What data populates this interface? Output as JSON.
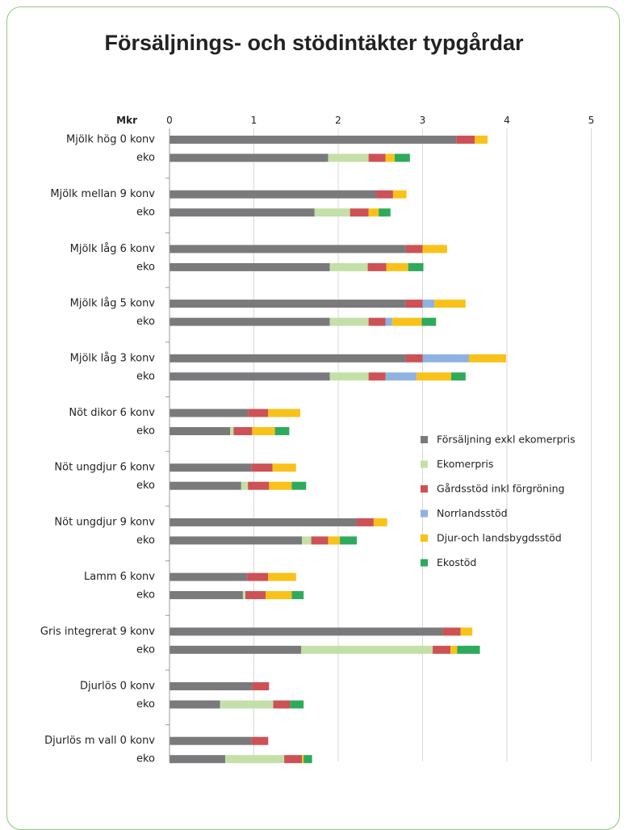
{
  "chart_data": {
    "type": "bar",
    "orientation": "horizontal",
    "stacked": true,
    "title": "Försäljnings- och stödintäkter typgårdar",
    "axis_unit": "Mkr",
    "xlim": [
      0,
      5
    ],
    "xticks": [
      "0",
      "1",
      "2",
      "3",
      "4",
      "5"
    ],
    "grid": true,
    "legend_position": "right",
    "categories": [
      "Mjölk hög 0 konv",
      "eko",
      "Mjölk mellan 9 konv",
      "eko",
      "Mjölk låg 6 konv",
      "eko",
      "Mjölk låg 5 konv",
      "eko",
      "Mjölk låg 3 konv",
      "eko",
      "Nöt dikor 6 konv",
      "eko",
      "Nöt ungdjur 6 konv",
      "eko",
      "Nöt ungdjur 9 konv",
      "eko",
      "Lamm 6 konv",
      "eko",
      "Gris integrerat 9 konv",
      "eko",
      "Djurlös 0 konv",
      "eko",
      "Djurlös m vall 0 konv",
      "eko"
    ],
    "series": [
      {
        "name": "Försäljning exkl ekomerpris",
        "color": "#7a7a7c",
        "values": [
          3.4,
          1.88,
          2.45,
          1.72,
          2.8,
          1.9,
          2.8,
          1.9,
          2.8,
          1.9,
          0.93,
          0.72,
          0.97,
          0.85,
          2.22,
          1.57,
          0.92,
          0.87,
          3.24,
          1.56,
          0.98,
          0.6,
          0.97,
          0.66
        ]
      },
      {
        "name": "Ekomerpris",
        "color": "#c4dfa8",
        "values": [
          0,
          0.48,
          0,
          0.42,
          0,
          0.45,
          0,
          0.46,
          0,
          0.46,
          0,
          0.04,
          0,
          0.08,
          0,
          0.11,
          0,
          0.03,
          0,
          1.56,
          0,
          0.63,
          0,
          0.7
        ]
      },
      {
        "name": "Gårdsstöd inkl förgröning",
        "color": "#cc5256",
        "values": [
          0.22,
          0.2,
          0.2,
          0.22,
          0.2,
          0.22,
          0.2,
          0.2,
          0.2,
          0.2,
          0.24,
          0.22,
          0.25,
          0.25,
          0.2,
          0.2,
          0.25,
          0.24,
          0.21,
          0.21,
          0.2,
          0.2,
          0.2,
          0.21
        ]
      },
      {
        "name": "Norrlandsstöd",
        "color": "#8fb3e0",
        "values": [
          0,
          0,
          0,
          0,
          0,
          0,
          0.14,
          0.08,
          0.55,
          0.37,
          0,
          0,
          0,
          0,
          0,
          0,
          0,
          0,
          0,
          0,
          0,
          0,
          0,
          0
        ]
      },
      {
        "name": "Djur-och landsbygdsstöd",
        "color": "#f8c21a",
        "values": [
          0.15,
          0.11,
          0.16,
          0.12,
          0.29,
          0.26,
          0.37,
          0.35,
          0.44,
          0.41,
          0.38,
          0.27,
          0.28,
          0.27,
          0.16,
          0.14,
          0.33,
          0.31,
          0.14,
          0.08,
          0,
          0,
          0,
          0.02
        ]
      },
      {
        "name": "Ekostöd",
        "color": "#2eaa5c",
        "values": [
          0,
          0.18,
          0,
          0.14,
          0,
          0.18,
          0,
          0.17,
          0,
          0.17,
          0,
          0.17,
          0,
          0.17,
          0,
          0.2,
          0,
          0.14,
          0,
          0.27,
          0,
          0.16,
          0,
          0.1
        ]
      }
    ]
  }
}
